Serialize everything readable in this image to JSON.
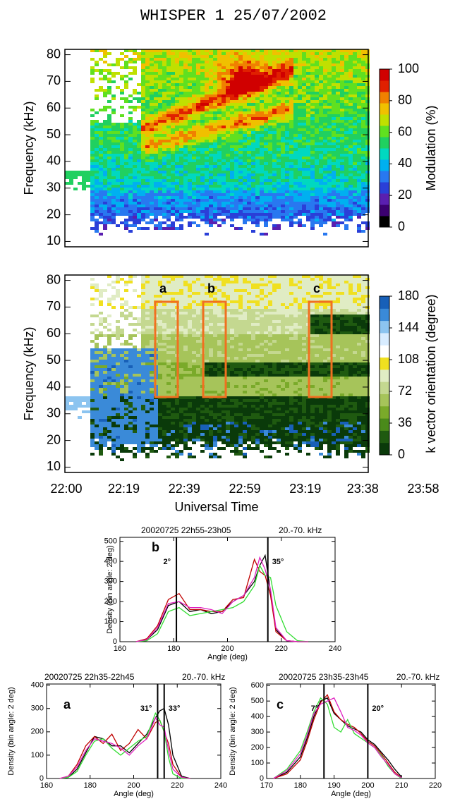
{
  "title": "WHISPER 1  25/07/2002",
  "chart_data": [
    {
      "type": "heatmap",
      "y_label": "Frequency (kHz)",
      "ylim": [
        8,
        82
      ],
      "yticks": [
        10,
        20,
        30,
        40,
        50,
        60,
        70,
        80
      ],
      "colorbar": {
        "label": "Modulation (%)",
        "lim": [
          0,
          100
        ],
        "ticks": [
          0,
          20,
          40,
          60,
          80,
          100
        ],
        "colors": [
          "#000000",
          "#3b0070",
          "#5a1fb0",
          "#2a3fd8",
          "#2878f0",
          "#00b0f0",
          "#00d8c0",
          "#20d060",
          "#60e020",
          "#c0e000",
          "#f0c000",
          "#f08000",
          "#e02000",
          "#d00000"
        ]
      }
    },
    {
      "type": "heatmap",
      "y_label": "Frequency (kHz)",
      "ylim": [
        8,
        82
      ],
      "yticks": [
        10,
        20,
        30,
        40,
        50,
        60,
        70,
        80
      ],
      "x_label": "Universal Time",
      "xlim": [
        0,
        118
      ],
      "xticks": [
        {
          "value": 0,
          "label": "22:00"
        },
        {
          "value": 19,
          "label": "22:19"
        },
        {
          "value": 39,
          "label": "22:39"
        },
        {
          "value": 59,
          "label": "22:59"
        },
        {
          "value": 79,
          "label": "23:19"
        },
        {
          "value": 98,
          "label": "23:38"
        },
        {
          "value": 118,
          "label": "23:58"
        }
      ],
      "boxes": [
        "a",
        "b",
        "c"
      ],
      "box_color": "#f07020",
      "colorbar": {
        "label": "k vector orientation (degree)",
        "lim": [
          0,
          180
        ],
        "ticks": [
          0,
          36,
          72,
          108,
          144,
          180
        ],
        "colors": [
          "#0a3a0a",
          "#1f5a10",
          "#4a8a1a",
          "#7aaa2a",
          "#a6c45a",
          "#c4d890",
          "#e0ecc4",
          "#f0e020",
          "#ffffff",
          "#d8ecff",
          "#8cc4f0",
          "#3a8ad8",
          "#1860b8"
        ]
      }
    },
    {
      "type": "line",
      "panel": "b",
      "header": [
        "20020725 22h55-23h05",
        "20.-70. kHz"
      ],
      "x_label": "Angle (deg)",
      "y_label": "Density (bin angle: 2 deg)",
      "xlim": [
        160,
        240
      ],
      "xticks": [
        160,
        180,
        200,
        220,
        240
      ],
      "ylim": [
        0,
        520
      ],
      "yticks": [
        0,
        100,
        200,
        300,
        400,
        500
      ],
      "vlines": [
        {
          "value": 181,
          "label": "2°"
        },
        {
          "value": 215,
          "label": "35°"
        }
      ],
      "x": [
        166,
        170,
        174,
        178,
        182,
        186,
        190,
        194,
        198,
        202,
        206,
        210,
        212,
        214,
        216,
        218,
        222,
        226,
        230
      ],
      "series": [
        {
          "color": "#000000",
          "values": [
            0,
            10,
            60,
            180,
            200,
            150,
            160,
            140,
            150,
            200,
            230,
            300,
            380,
            430,
            250,
            60,
            5,
            0,
            0
          ]
        },
        {
          "color": "#c00000",
          "values": [
            0,
            15,
            80,
            210,
            240,
            160,
            160,
            150,
            150,
            210,
            220,
            410,
            350,
            330,
            230,
            50,
            5,
            0,
            0
          ]
        },
        {
          "color": "#33dd33",
          "values": [
            0,
            5,
            40,
            150,
            170,
            130,
            140,
            150,
            160,
            170,
            200,
            280,
            380,
            330,
            320,
            180,
            50,
            5,
            0
          ]
        },
        {
          "color": "#e020c0",
          "values": [
            0,
            10,
            70,
            190,
            200,
            170,
            170,
            160,
            140,
            200,
            230,
            320,
            420,
            360,
            260,
            70,
            5,
            0,
            0
          ]
        }
      ]
    },
    {
      "type": "line",
      "panel": "a",
      "header": [
        "20020725 22h35-22h45",
        "20.-70. kHz"
      ],
      "x_label": "Angle (deg)",
      "y_label": "Density (bin angle: 2 deg)",
      "xlim": [
        160,
        240
      ],
      "xticks": [
        160,
        180,
        200,
        220,
        240
      ],
      "ylim": [
        0,
        405
      ],
      "yticks": [
        0,
        100,
        200,
        300,
        400
      ],
      "vlines": [
        {
          "value": 211,
          "label": "31°"
        },
        {
          "value": 214,
          "label": "33°"
        }
      ],
      "x": [
        166,
        170,
        174,
        178,
        182,
        186,
        190,
        194,
        198,
        202,
        206,
        210,
        212,
        214,
        216,
        218,
        222,
        226
      ],
      "series": [
        {
          "color": "#000000",
          "values": [
            0,
            5,
            40,
            110,
            180,
            170,
            140,
            140,
            110,
            150,
            190,
            260,
            290,
            300,
            230,
            100,
            10,
            0
          ]
        },
        {
          "color": "#c00000",
          "values": [
            0,
            10,
            60,
            140,
            180,
            150,
            190,
            120,
            150,
            210,
            170,
            240,
            250,
            200,
            150,
            60,
            5,
            0
          ]
        },
        {
          "color": "#33dd33",
          "values": [
            0,
            5,
            30,
            100,
            160,
            170,
            130,
            100,
            130,
            160,
            180,
            280,
            250,
            200,
            90,
            20,
            0,
            0
          ]
        },
        {
          "color": "#e020c0",
          "values": [
            0,
            10,
            50,
            120,
            170,
            160,
            150,
            130,
            100,
            140,
            170,
            260,
            230,
            220,
            120,
            40,
            5,
            0
          ]
        }
      ]
    },
    {
      "type": "line",
      "panel": "c",
      "header": [
        "20020725 23h35-23h45",
        "20.-70. kHz"
      ],
      "x_label": "Angle (deg)",
      "y_label": "Density (bin angle: 2 deg)",
      "xlim": [
        170,
        220
      ],
      "xticks": [
        170,
        180,
        190,
        200,
        210,
        220
      ],
      "ylim": [
        0,
        610
      ],
      "yticks": [
        0,
        100,
        200,
        300,
        400,
        500,
        600
      ],
      "vlines": [
        {
          "value": 187,
          "label": "7°"
        },
        {
          "value": 200,
          "label": "20°"
        }
      ],
      "x": [
        172,
        176,
        180,
        182,
        184,
        186,
        188,
        190,
        192,
        194,
        196,
        198,
        200,
        202,
        204,
        206,
        208,
        210
      ],
      "series": [
        {
          "color": "#000000",
          "values": [
            0,
            40,
            140,
            260,
            400,
            500,
            520,
            420,
            380,
            340,
            320,
            300,
            250,
            220,
            170,
            120,
            60,
            10
          ]
        },
        {
          "color": "#c00000",
          "values": [
            0,
            30,
            120,
            240,
            380,
            490,
            540,
            430,
            380,
            350,
            330,
            290,
            240,
            210,
            160,
            100,
            40,
            5
          ]
        },
        {
          "color": "#33dd33",
          "values": [
            0,
            60,
            180,
            300,
            430,
            520,
            480,
            330,
            300,
            380,
            290,
            260,
            230,
            200,
            150,
            80,
            30,
            0
          ]
        },
        {
          "color": "#e020c0",
          "values": [
            0,
            50,
            160,
            280,
            420,
            480,
            500,
            520,
            430,
            330,
            310,
            280,
            230,
            200,
            140,
            90,
            30,
            5
          ]
        }
      ]
    }
  ]
}
